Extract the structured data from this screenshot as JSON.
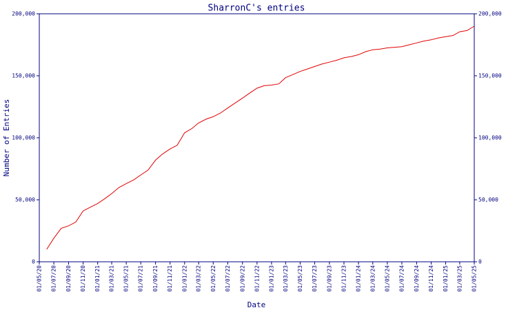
{
  "chart_data": {
    "type": "line",
    "title": "SharronC's entries",
    "x_label": "Date",
    "y_label": "Number of Entries",
    "color": "#e00000",
    "axis_color": "#000080",
    "y_axis_both_sides": true,
    "grid": false,
    "xlim": [
      "2020-05-01",
      "2025-05-01"
    ],
    "xticks": [
      {
        "value": "2020-05-01",
        "label": "01/05/20"
      },
      {
        "value": "2020-07-01",
        "label": "01/07/20"
      },
      {
        "value": "2020-09-01",
        "label": "01/09/20"
      },
      {
        "value": "2020-11-01",
        "label": "01/11/20"
      },
      {
        "value": "2021-01-01",
        "label": "01/01/21"
      },
      {
        "value": "2021-03-01",
        "label": "01/03/21"
      },
      {
        "value": "2021-05-01",
        "label": "01/05/21"
      },
      {
        "value": "2021-07-01",
        "label": "01/07/21"
      },
      {
        "value": "2021-09-01",
        "label": "01/09/21"
      },
      {
        "value": "2021-11-01",
        "label": "01/11/21"
      },
      {
        "value": "2022-01-01",
        "label": "01/01/22"
      },
      {
        "value": "2022-03-01",
        "label": "01/03/22"
      },
      {
        "value": "2022-05-01",
        "label": "01/05/22"
      },
      {
        "value": "2022-07-01",
        "label": "01/07/22"
      },
      {
        "value": "2022-09-01",
        "label": "01/09/22"
      },
      {
        "value": "2022-11-01",
        "label": "01/11/22"
      },
      {
        "value": "2023-01-01",
        "label": "01/01/23"
      },
      {
        "value": "2023-03-01",
        "label": "01/03/23"
      },
      {
        "value": "2023-05-01",
        "label": "01/05/23"
      },
      {
        "value": "2023-07-01",
        "label": "01/07/23"
      },
      {
        "value": "2023-09-01",
        "label": "01/09/23"
      },
      {
        "value": "2023-11-01",
        "label": "01/11/23"
      },
      {
        "value": "2024-01-01",
        "label": "01/01/24"
      },
      {
        "value": "2024-03-01",
        "label": "01/03/24"
      },
      {
        "value": "2024-05-01",
        "label": "01/05/24"
      },
      {
        "value": "2024-07-01",
        "label": "01/07/24"
      },
      {
        "value": "2024-09-01",
        "label": "01/09/24"
      },
      {
        "value": "2024-11-01",
        "label": "01/11/24"
      },
      {
        "value": "2025-01-01",
        "label": "01/01/25"
      },
      {
        "value": "2025-03-01",
        "label": "01/03/25"
      },
      {
        "value": "2025-05-01",
        "label": "01/05/25"
      }
    ],
    "ylim": [
      0,
      200000
    ],
    "yticks": [
      0,
      {
        "value": 50000,
        "label": "50,000"
      },
      {
        "value": 100000,
        "label": "100,000"
      },
      {
        "value": 150000,
        "label": "150,000"
      },
      {
        "value": 200000,
        "label": "200,000"
      }
    ],
    "x": [
      "2020-06-01",
      "2020-07-01",
      "2020-08-01",
      "2020-09-01",
      "2020-10-01",
      "2020-11-01",
      "2020-12-01",
      "2021-01-01",
      "2021-02-01",
      "2021-03-01",
      "2021-04-01",
      "2021-05-01",
      "2021-06-01",
      "2021-07-01",
      "2021-08-01",
      "2021-09-01",
      "2021-10-01",
      "2021-11-01",
      "2021-12-01",
      "2022-01-01",
      "2022-02-01",
      "2022-03-01",
      "2022-04-01",
      "2022-05-01",
      "2022-06-01",
      "2022-07-01",
      "2022-08-01",
      "2022-09-01",
      "2022-10-01",
      "2022-11-01",
      "2022-12-01",
      "2023-01-01",
      "2023-02-01",
      "2023-03-01",
      "2023-04-01",
      "2023-05-01",
      "2023-06-01",
      "2023-07-01",
      "2023-08-01",
      "2023-09-01",
      "2023-10-01",
      "2023-11-01",
      "2023-12-01",
      "2024-01-01",
      "2024-02-01",
      "2024-03-01",
      "2024-04-01",
      "2024-05-01",
      "2024-06-01",
      "2024-07-01",
      "2024-08-01",
      "2024-09-01",
      "2024-10-01",
      "2024-11-01",
      "2024-12-01",
      "2025-01-01",
      "2025-02-01",
      "2025-03-01",
      "2025-04-01",
      "2025-05-01"
    ],
    "values": [
      10000,
      19000,
      27000,
      29000,
      32000,
      41000,
      44000,
      47000,
      51000,
      55000,
      60000,
      63000,
      66000,
      70000,
      74000,
      82000,
      87000,
      91000,
      94000,
      104000,
      107500,
      112000,
      115000,
      117000,
      120000,
      124000,
      128000,
      132000,
      136000,
      140000,
      142000,
      142500,
      143500,
      148500,
      151000,
      153500,
      155500,
      157500,
      159500,
      161000,
      162500,
      164500,
      165500,
      167000,
      169500,
      171000,
      171500,
      172500,
      173000,
      173500,
      175000,
      176500,
      178000,
      179000,
      180500,
      181500,
      182500,
      185500,
      186500,
      190000
    ]
  }
}
